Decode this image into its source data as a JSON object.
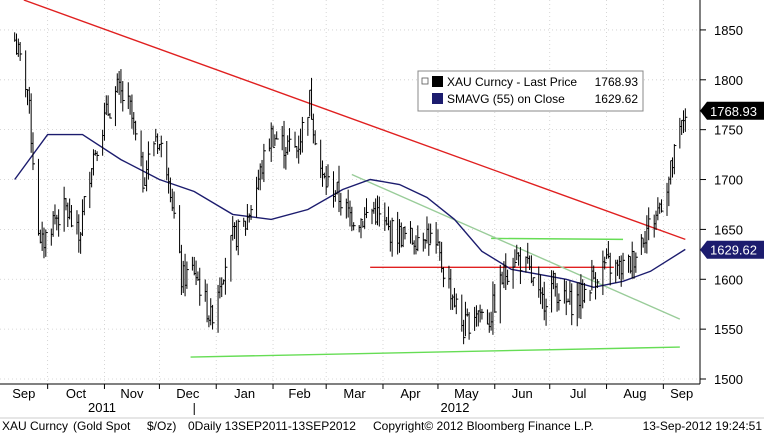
{
  "chart_data": {
    "type": "line",
    "price_style": "ohlc-bars",
    "series": [
      {
        "name": "XAU Curncy - Last Price",
        "value_label": "1768.93",
        "color": "#000000",
        "x": [
          "2011-09-13",
          "2011-09-20",
          "2011-09-27",
          "2011-10-04",
          "2011-10-11",
          "2011-10-18",
          "2011-10-25",
          "2011-11-01",
          "2011-11-08",
          "2011-11-15",
          "2011-11-22",
          "2011-11-29",
          "2011-12-06",
          "2011-12-13",
          "2011-12-20",
          "2011-12-29",
          "2012-01-03",
          "2012-01-10",
          "2012-01-17",
          "2012-01-24",
          "2012-01-31",
          "2012-02-07",
          "2012-02-14",
          "2012-02-21",
          "2012-02-28",
          "2012-03-06",
          "2012-03-13",
          "2012-03-20",
          "2012-03-27",
          "2012-04-03",
          "2012-04-10",
          "2012-04-17",
          "2012-04-24",
          "2012-05-01",
          "2012-05-08",
          "2012-05-15",
          "2012-05-22",
          "2012-05-29",
          "2012-06-05",
          "2012-06-12",
          "2012-06-19",
          "2012-06-26",
          "2012-07-03",
          "2012-07-10",
          "2012-07-17",
          "2012-07-24",
          "2012-07-31",
          "2012-08-07",
          "2012-08-14",
          "2012-08-21",
          "2012-08-28",
          "2012-09-04",
          "2012-09-13"
        ],
        "y": [
          1840,
          1790,
          1630,
          1660,
          1670,
          1640,
          1720,
          1760,
          1790,
          1770,
          1700,
          1745,
          1710,
          1600,
          1610,
          1560,
          1600,
          1640,
          1655,
          1700,
          1745,
          1735,
          1730,
          1780,
          1700,
          1690,
          1665,
          1660,
          1670,
          1650,
          1645,
          1640,
          1650,
          1625,
          1590,
          1550,
          1570,
          1560,
          1600,
          1625,
          1610,
          1575,
          1595,
          1575,
          1580,
          1600,
          1615,
          1610,
          1615,
          1645,
          1665,
          1700,
          1769
        ]
      },
      {
        "name": "SMAVG (55) on Close",
        "value_label": "1629.62",
        "color": "#1c1c6e",
        "x": [
          "2011-09-13",
          "2011-10-01",
          "2011-10-20",
          "2011-11-10",
          "2011-12-01",
          "2011-12-20",
          "2012-01-10",
          "2012-01-31",
          "2012-02-20",
          "2012-03-10",
          "2012-03-25",
          "2012-04-10",
          "2012-04-25",
          "2012-05-10",
          "2012-05-25",
          "2012-06-10",
          "2012-06-25",
          "2012-07-10",
          "2012-07-25",
          "2012-08-10",
          "2012-08-25",
          "2012-09-13"
        ],
        "y": [
          1700,
          1745,
          1745,
          1720,
          1700,
          1688,
          1665,
          1660,
          1670,
          1690,
          1700,
          1695,
          1682,
          1660,
          1628,
          1610,
          1605,
          1600,
          1592,
          1598,
          1608,
          1630
        ]
      }
    ],
    "trendlines": [
      {
        "color": "#e02020",
        "x": [
          "2011-09-18",
          "2012-09-13"
        ],
        "y": [
          1880,
          1640
        ]
      },
      {
        "color": "#e02020",
        "x": [
          "2012-03-25",
          "2012-08-05"
        ],
        "y": [
          1612,
          1612
        ]
      },
      {
        "color": "#66dd55",
        "x": [
          "2011-12-18",
          "2012-09-10"
        ],
        "y": [
          1522,
          1532
        ]
      },
      {
        "color": "#66dd55",
        "x": [
          "2012-05-30",
          "2012-08-10"
        ],
        "y": [
          1641,
          1640
        ]
      },
      {
        "color": "#99cc99",
        "x": [
          "2012-03-15",
          "2012-09-10"
        ],
        "y": [
          1705,
          1560
        ]
      }
    ],
    "yaxis": {
      "ylim": [
        1495,
        1880
      ],
      "ticks": [
        "1850",
        "1800",
        "1750",
        "1700",
        "1650",
        "1600",
        "1550",
        "1500"
      ],
      "position": "right"
    },
    "xaxis": {
      "months": [
        "Sep",
        "Oct",
        "Nov",
        "Dec",
        "Jan",
        "Feb",
        "Mar",
        "Apr",
        "May",
        "Jun",
        "Jul",
        "Aug",
        "Sep"
      ],
      "years": [
        "2011",
        "2012"
      ]
    },
    "legend": {
      "position": "top-right"
    },
    "grid": true,
    "bottom_bar": {
      "ticker": "XAU Curncy",
      "description": "(Gold Spot",
      "units": "$/Oz)",
      "period": "0Daily 13SEP2011-13SEP2012",
      "copyright": "Copyright© 2012 Bloomberg Finance L.P.",
      "timestamp": "13-Sep-2012 19:24:51"
    }
  }
}
